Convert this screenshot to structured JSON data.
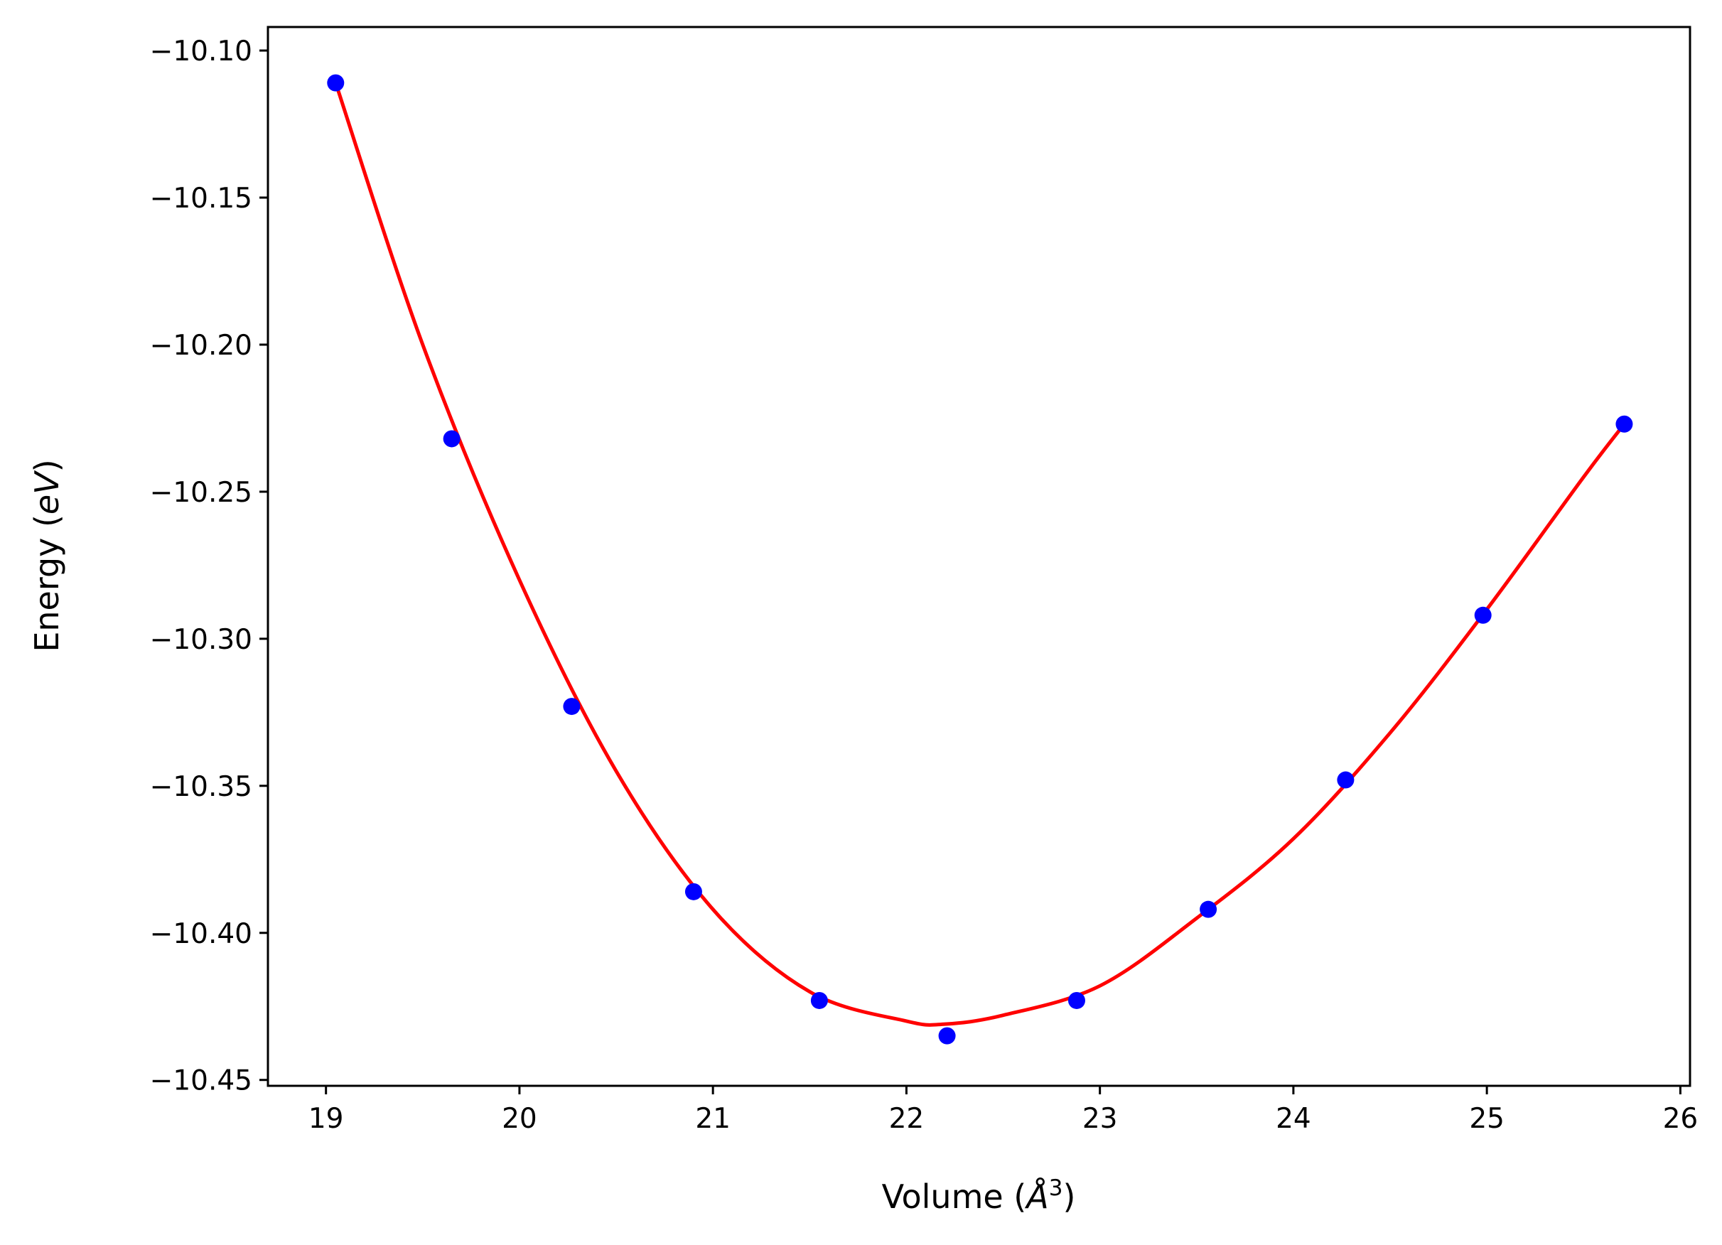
{
  "chart_data": {
    "type": "scatter",
    "title": "",
    "xlabel": {
      "prefix": "Volume (",
      "symbol": "Å",
      "superscript": "3",
      "suffix": ")"
    },
    "ylabel": {
      "prefix": "Energy (",
      "symbol": "eV",
      "suffix": ")"
    },
    "xlim": [
      18.7,
      26.05
    ],
    "ylim": [
      -10.452,
      -10.092
    ],
    "xticks": [
      19,
      20,
      21,
      22,
      23,
      24,
      25,
      26
    ],
    "xtick_labels": [
      "19",
      "20",
      "21",
      "22",
      "23",
      "24",
      "25",
      "26"
    ],
    "yticks": [
      -10.1,
      -10.15,
      -10.2,
      -10.25,
      -10.3,
      -10.35,
      -10.4,
      -10.45
    ],
    "ytick_labels": [
      "−10.10",
      "−10.15",
      "−10.20",
      "−10.25",
      "−10.30",
      "−10.35",
      "−10.40",
      "−10.45"
    ],
    "grid": false,
    "series": [
      {
        "kind": "points",
        "color": "#0000ff",
        "x": [
          19.05,
          19.65,
          20.27,
          20.9,
          21.55,
          22.21,
          22.88,
          23.56,
          24.27,
          24.98,
          25.71
        ],
        "y": [
          -10.111,
          -10.232,
          -10.323,
          -10.386,
          -10.423,
          -10.435,
          -10.423,
          -10.392,
          -10.348,
          -10.292,
          -10.227
        ]
      },
      {
        "kind": "fit-line",
        "color": "#ff0000",
        "x": [
          19.05,
          19.5,
          20.0,
          20.5,
          21.0,
          21.5,
          22.0,
          22.2,
          22.5,
          23.0,
          23.5,
          24.0,
          24.5,
          25.0,
          25.5,
          25.71
        ],
        "y": [
          -10.111,
          -10.2,
          -10.28,
          -10.345,
          -10.392,
          -10.42,
          -10.43,
          -10.431,
          -10.428,
          -10.418,
          -10.395,
          -10.368,
          -10.332,
          -10.29,
          -10.245,
          -10.227
        ]
      }
    ]
  }
}
